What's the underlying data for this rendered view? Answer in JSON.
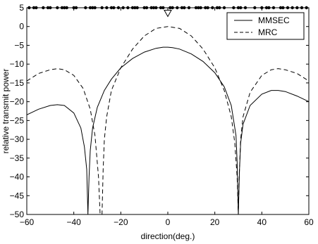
{
  "chart_data": {
    "type": "line",
    "title": "",
    "xlabel": "direction(deg.)",
    "ylabel": "relative transmit power",
    "xlim": [
      -60,
      60
    ],
    "ylim": [
      -50,
      5
    ],
    "xticks": [
      -60,
      -40,
      -20,
      0,
      20,
      40,
      60
    ],
    "xtick_labels": [
      "−60",
      "−40",
      "−20",
      "0",
      "20",
      "40",
      "60"
    ],
    "yticks": [
      5,
      0,
      -5,
      -10,
      -15,
      -20,
      -25,
      -30,
      -35,
      -40,
      -45,
      -50
    ],
    "ytick_labels": [
      "5",
      "0",
      "−5",
      "−10",
      "−15",
      "−20",
      "−25",
      "−30",
      "−35",
      "−40",
      "−45",
      "−50"
    ],
    "grid": false,
    "legend_position": "top-right",
    "series": [
      {
        "name": "MMSEC",
        "style": "solid",
        "color": "#000000",
        "x": [
          -60,
          -55,
          -50,
          -47,
          -44,
          -40,
          -37,
          -35.5,
          -34.5,
          -34,
          -33.5,
          -33,
          -32,
          -30,
          -27,
          -24,
          -20,
          -15,
          -10,
          -5,
          -2,
          0,
          2,
          5,
          10,
          15,
          20,
          24,
          27,
          29,
          29.5,
          30,
          30.5,
          31,
          32,
          35,
          40,
          44,
          47,
          50,
          55,
          60
        ],
        "y": [
          -23.5,
          -22,
          -21,
          -20.8,
          -21,
          -23,
          -27,
          -32,
          -38,
          -50,
          -40,
          -33,
          -27,
          -21.5,
          -17,
          -14,
          -11,
          -8.5,
          -6.8,
          -5.8,
          -5.5,
          -5.5,
          -5.6,
          -6,
          -7.3,
          -9.3,
          -12.3,
          -16,
          -21,
          -29,
          -36,
          -50,
          -38,
          -31,
          -26,
          -21,
          -18,
          -17,
          -17,
          -17.3,
          -18.5,
          -20
        ]
      },
      {
        "name": "MRC",
        "style": "dashed",
        "color": "#000000",
        "x": [
          -60,
          -55,
          -50,
          -47,
          -44,
          -40,
          -36,
          -33,
          -31,
          -29.5,
          -28.8,
          -28.3,
          -28,
          -27.5,
          -27,
          -26,
          -24,
          -20,
          -15,
          -10,
          -5,
          0,
          5,
          10,
          15,
          20,
          24,
          27,
          28.5,
          29.5,
          30,
          30.3,
          31,
          32,
          35,
          40,
          44,
          47,
          50,
          55,
          60
        ],
        "y": [
          -14.5,
          -12.5,
          -11.5,
          -11.2,
          -11.5,
          -13,
          -16.5,
          -22,
          -29,
          -40,
          -50,
          -50,
          -50,
          -38,
          -30,
          -24,
          -17,
          -11,
          -6,
          -2.5,
          -0.5,
          0,
          -0.5,
          -2.5,
          -6,
          -11,
          -17,
          -24,
          -31,
          -40,
          -50,
          -41,
          -30,
          -24,
          -17.5,
          -13,
          -11.5,
          -11.2,
          -11.5,
          -12.5,
          -14.5
        ]
      },
      {
        "name": "",
        "style": "markers",
        "color": "#000000",
        "y_level": 5,
        "x": [
          -59,
          -57,
          -56,
          -53,
          -51,
          -50,
          -47,
          -45,
          -44,
          -43,
          -40,
          -39,
          -35,
          -33,
          -32,
          -31,
          -28,
          -26,
          -24,
          -23,
          -21,
          -19,
          -17,
          -15,
          -14,
          -13,
          -10,
          -9,
          -7,
          -6,
          -5,
          -3,
          -2,
          1,
          2,
          4,
          6,
          7,
          9,
          12,
          13,
          14,
          16,
          17,
          19,
          21,
          22,
          24,
          28,
          30,
          31,
          33,
          37,
          40,
          42,
          43,
          45,
          48,
          49,
          51,
          53,
          55,
          57,
          59
        ]
      },
      {
        "name": "",
        "style": "triangle-marker",
        "color": "#000000",
        "x": [
          0
        ],
        "y": [
          3.6
        ]
      }
    ],
    "legend": [
      {
        "label": "MMSEC",
        "style": "solid"
      },
      {
        "label": "MRC",
        "style": "dashed"
      }
    ]
  }
}
